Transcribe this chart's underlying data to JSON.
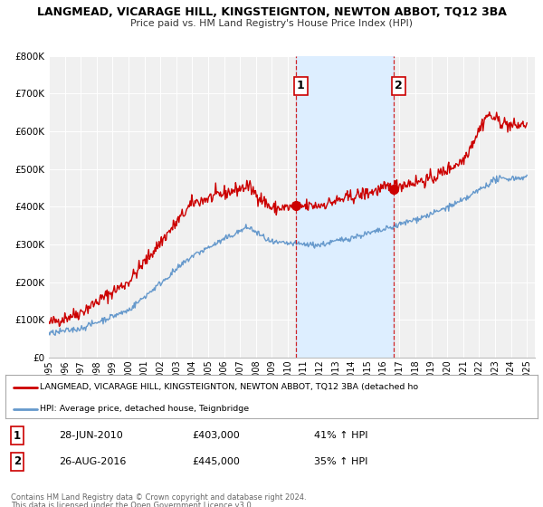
{
  "title": "LANGMEAD, VICARAGE HILL, KINGSTEIGNTON, NEWTON ABBOT, TQ12 3BA",
  "subtitle": "Price paid vs. HM Land Registry's House Price Index (HPI)",
  "ylim": [
    0,
    800000
  ],
  "yticks": [
    0,
    100000,
    200000,
    300000,
    400000,
    500000,
    600000,
    700000,
    800000
  ],
  "ytick_labels": [
    "£0",
    "£100K",
    "£200K",
    "£300K",
    "£400K",
    "£500K",
    "£600K",
    "£700K",
    "£800K"
  ],
  "xlim_start": 1995.0,
  "xlim_end": 2025.5,
  "red_line_color": "#cc0000",
  "blue_line_color": "#6699cc",
  "shaded_color": "#ddeeff",
  "marker1_x": 2010.5,
  "marker1_y": 403000,
  "marker2_x": 2016.65,
  "marker2_y": 445000,
  "vline1_x": 2010.5,
  "vline2_x": 2016.65,
  "legend_line1": "LANGMEAD, VICARAGE HILL, KINGSTEIGNTON, NEWTON ABBOT, TQ12 3BA (detached ho",
  "legend_line2": "HPI: Average price, detached house, Teignbridge",
  "annotation1_date": "28-JUN-2010",
  "annotation1_price": "£403,000",
  "annotation1_hpi": "41% ↑ HPI",
  "annotation2_date": "26-AUG-2016",
  "annotation2_price": "£445,000",
  "annotation2_hpi": "35% ↑ HPI",
  "footer1": "Contains HM Land Registry data © Crown copyright and database right 2024.",
  "footer2": "This data is licensed under the Open Government Licence v3.0.",
  "background_color": "#ffffff",
  "plot_bg_color": "#f0f0f0"
}
